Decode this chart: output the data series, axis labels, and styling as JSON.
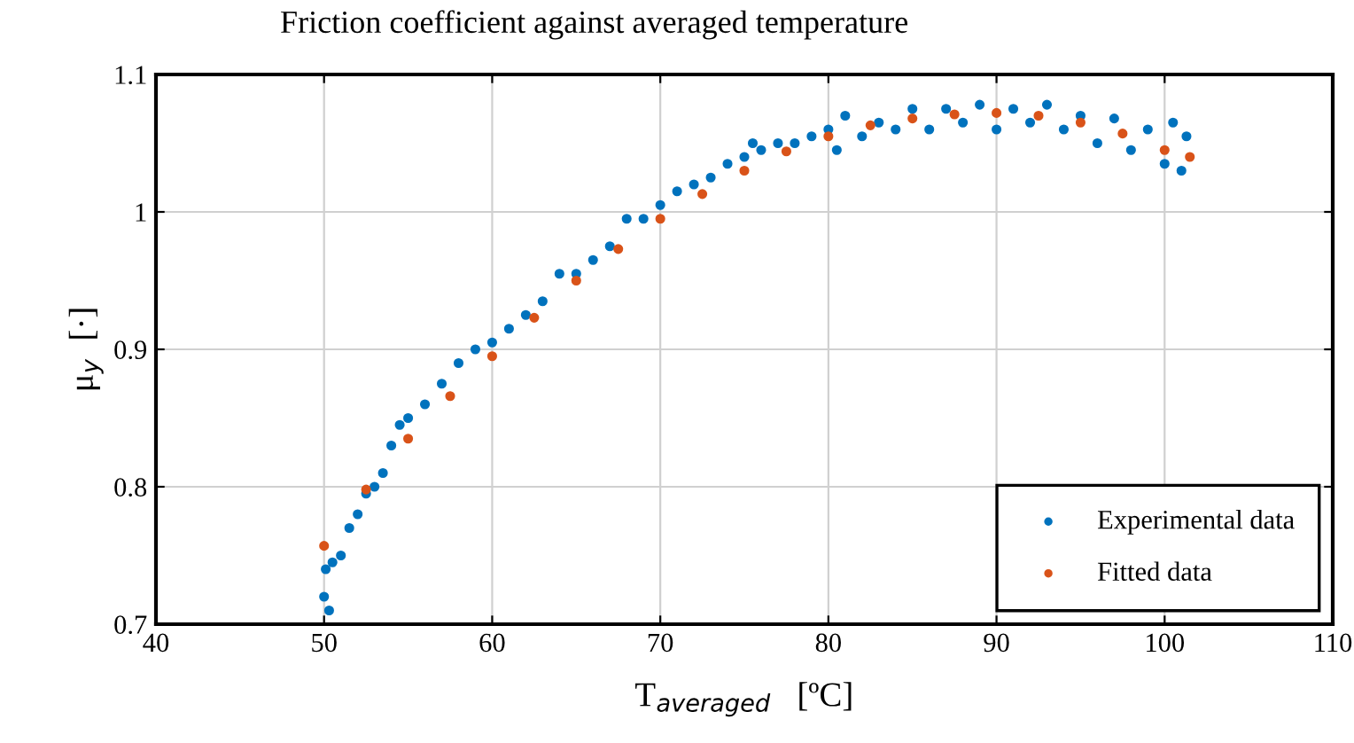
{
  "chart_data": {
    "type": "scatter",
    "title": "Friction coefficient against averaged temperature",
    "xlabel": "T$_{averaged}$   [ºC]",
    "ylabel": "μ$_{y}$  [·]",
    "xlim": [
      40,
      110
    ],
    "xticks": [
      40,
      50,
      60,
      70,
      80,
      90,
      100,
      110
    ],
    "ylim": [
      0.7,
      1.1
    ],
    "yticks": [
      0.7,
      0.8,
      0.9,
      1,
      1.1
    ],
    "grid": true,
    "legend": "bottom right",
    "marker": "circle",
    "series": [
      {
        "name": "Experimental data",
        "color": "#0072bd",
        "x": [
          50.0,
          50.1,
          50.3,
          50.5,
          51,
          51.5,
          52,
          52.5,
          53,
          53.5,
          54,
          54.5,
          55,
          56,
          57,
          58,
          59,
          60,
          61,
          62,
          63,
          64,
          65,
          66,
          67,
          68,
          69,
          70,
          71,
          72,
          73,
          74,
          75,
          75.5,
          76,
          77,
          78,
          79,
          80,
          80.5,
          81,
          82,
          83,
          84,
          85,
          86,
          87,
          88,
          89,
          90,
          91,
          92,
          93,
          94,
          95,
          96,
          97,
          98,
          99,
          100,
          100.5,
          101,
          101.3
        ],
        "values": [
          0.72,
          0.74,
          0.71,
          0.745,
          0.75,
          0.77,
          0.78,
          0.795,
          0.8,
          0.81,
          0.83,
          0.845,
          0.85,
          0.86,
          0.875,
          0.89,
          0.9,
          0.905,
          0.915,
          0.925,
          0.935,
          0.955,
          0.955,
          0.965,
          0.975,
          0.995,
          0.995,
          1.005,
          1.015,
          1.02,
          1.025,
          1.035,
          1.04,
          1.05,
          1.045,
          1.05,
          1.05,
          1.055,
          1.06,
          1.045,
          1.07,
          1.055,
          1.065,
          1.06,
          1.075,
          1.06,
          1.075,
          1.065,
          1.078,
          1.06,
          1.075,
          1.065,
          1.078,
          1.06,
          1.07,
          1.05,
          1.068,
          1.045,
          1.06,
          1.035,
          1.065,
          1.03,
          1.055
        ]
      },
      {
        "name": "Fitted data",
        "color": "#d95319",
        "x": [
          50,
          52.5,
          55,
          57.5,
          60,
          62.5,
          65,
          67.5,
          70,
          72.5,
          75,
          77.5,
          80,
          82.5,
          85,
          87.5,
          90,
          92.5,
          95,
          97.5,
          100,
          101.5
        ],
        "values": [
          0.757,
          0.798,
          0.835,
          0.866,
          0.895,
          0.923,
          0.95,
          0.973,
          0.995,
          1.013,
          1.03,
          1.044,
          1.055,
          1.063,
          1.068,
          1.071,
          1.072,
          1.07,
          1.065,
          1.057,
          1.045,
          1.04
        ]
      }
    ]
  }
}
